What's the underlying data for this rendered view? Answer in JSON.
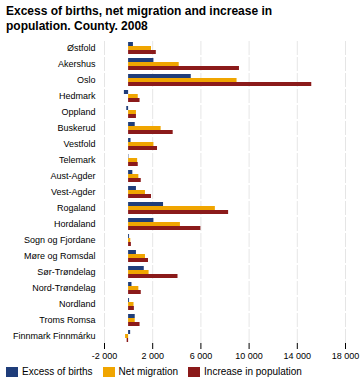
{
  "chart_data": {
    "type": "bar",
    "orientation": "horizontal",
    "title": "Excess of births, net migration and increase in\npopulation. County. 2008",
    "categories": [
      "Østfold",
      "Akershus",
      "Oslo",
      "Hedmark",
      "Oppland",
      "Buskerud",
      "Vestfold",
      "Telemark",
      "Aust-Agder",
      "Vest-Agder",
      "Rogaland",
      "Hordaland",
      "Sogn og Fjordane",
      "Møre og Romsdal",
      "Sør-Trøndelag",
      "Nord-Trøndelag",
      "Nordland",
      "Troms Romsa",
      "Finnmark Finnmárku"
    ],
    "series": [
      {
        "name": "Excess of births",
        "color": "#1f3d7a",
        "values": [
          400,
          2100,
          5200,
          -350,
          -150,
          550,
          200,
          30,
          350,
          650,
          2900,
          2100,
          80,
          650,
          1300,
          280,
          80,
          550,
          170
        ]
      },
      {
        "name": "Net migration",
        "color": "#f0a500",
        "values": [
          1900,
          4200,
          9000,
          800,
          650,
          2700,
          2100,
          750,
          850,
          1400,
          7200,
          4300,
          180,
          1400,
          1700,
          850,
          450,
          550,
          -250
        ]
      },
      {
        "name": "Increase in population",
        "color": "#8b1a1a",
        "values": [
          2300,
          9200,
          15200,
          950,
          650,
          3700,
          2400,
          800,
          1050,
          1900,
          8300,
          6000,
          230,
          1650,
          4100,
          1050,
          480,
          950,
          -120
        ]
      }
    ],
    "xlim": [
      -2000,
      18000
    ],
    "xticks": [
      {
        "value": -2000,
        "label": "-2 000"
      },
      {
        "value": 2000,
        "label": "2 000"
      },
      {
        "value": 6000,
        "label": "6 000"
      },
      {
        "value": 10000,
        "label": "10 000"
      },
      {
        "value": 14000,
        "label": "14 000"
      },
      {
        "value": 18000,
        "label": "18 000"
      }
    ],
    "grid": true,
    "legend": "lower left"
  }
}
